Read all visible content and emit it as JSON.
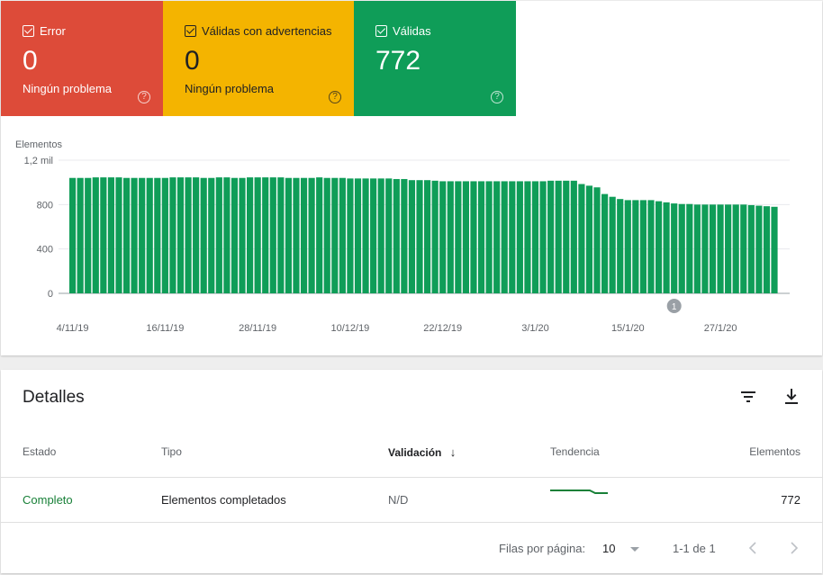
{
  "tiles": [
    {
      "id": "error",
      "label": "Error",
      "count": "0",
      "subtitle": "Ningún problema",
      "color": "#dd4b39",
      "checked": true
    },
    {
      "id": "warnings",
      "label": "Válidas con advertencias",
      "count": "0",
      "subtitle": "Ningún problema",
      "color": "#f4b400",
      "checked": true
    },
    {
      "id": "valid",
      "label": "Válidas",
      "count": "772",
      "subtitle": "",
      "color": "#0f9d58",
      "checked": true
    }
  ],
  "help_glyph": "?",
  "chart_data": {
    "type": "bar",
    "ylabel": "Elementos",
    "ylim": [
      0,
      1200
    ],
    "yticks": [
      {
        "value": 0,
        "label": "0"
      },
      {
        "value": 400,
        "label": "400"
      },
      {
        "value": 800,
        "label": "800"
      },
      {
        "value": 1200,
        "label": "1,2 mil"
      }
    ],
    "xticks": [
      {
        "index": 0,
        "label": "4/11/19"
      },
      {
        "index": 12,
        "label": "16/11/19"
      },
      {
        "index": 24,
        "label": "28/11/19"
      },
      {
        "index": 36,
        "label": "10/12/19"
      },
      {
        "index": 48,
        "label": "22/12/19"
      },
      {
        "index": 60,
        "label": "3/1/20"
      },
      {
        "index": 72,
        "label": "15/1/20"
      },
      {
        "index": 84,
        "label": "27/1/20"
      }
    ],
    "series": [
      {
        "color": "#0f9d58",
        "values": [
          1040,
          1040,
          1040,
          1045,
          1045,
          1045,
          1045,
          1040,
          1040,
          1040,
          1040,
          1040,
          1040,
          1045,
          1045,
          1045,
          1045,
          1040,
          1040,
          1045,
          1045,
          1040,
          1040,
          1045,
          1045,
          1045,
          1045,
          1045,
          1040,
          1040,
          1040,
          1040,
          1045,
          1040,
          1040,
          1040,
          1035,
          1035,
          1035,
          1035,
          1035,
          1035,
          1030,
          1030,
          1020,
          1020,
          1020,
          1015,
          1010,
          1010,
          1010,
          1010,
          1010,
          1010,
          1010,
          1010,
          1010,
          1010,
          1010,
          1010,
          1010,
          1010,
          1015,
          1015,
          1015,
          1015,
          985,
          970,
          955,
          895,
          870,
          850,
          840,
          840,
          840,
          840,
          830,
          820,
          810,
          805,
          805,
          800,
          800,
          800,
          800,
          800,
          800,
          800,
          795,
          790,
          785,
          780
        ]
      }
    ],
    "annotations": [
      {
        "index": 78,
        "label": "1"
      }
    ],
    "grid": true
  },
  "details": {
    "title": "Detalles",
    "filter_icon": "filter-icon",
    "download_icon": "download-icon",
    "columns": {
      "estado": "Estado",
      "tipo": "Tipo",
      "validacion": "Validación",
      "tendencia": "Tendencia",
      "elementos": "Elementos"
    },
    "sort_icon": "↓",
    "rows": [
      {
        "estado": "Completo",
        "tipo": "Elementos completados",
        "validacion": "N/D",
        "elementos": "772",
        "estado_color": "#188038"
      }
    ],
    "footer": {
      "rows_per_page_label": "Filas por página:",
      "rows_per_page_value": "10",
      "range": "1-1 de 1"
    }
  }
}
